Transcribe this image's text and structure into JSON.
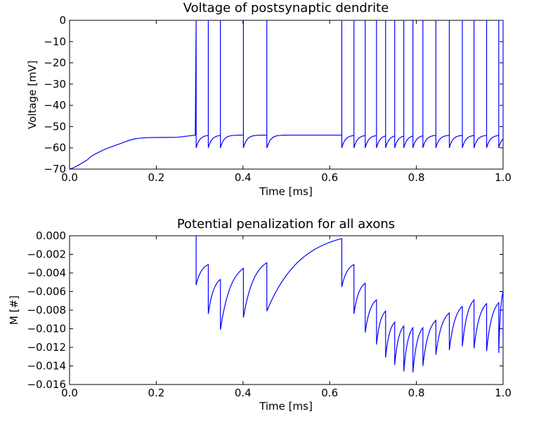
{
  "chart_data": [
    {
      "type": "line",
      "title": "Voltage of postsynaptic dendrite",
      "xlabel": "Time [ms]",
      "ylabel": "Voltage [mV]",
      "xlim": [
        0.0,
        1.0
      ],
      "ylim": [
        -70,
        0
      ],
      "xticks": [
        "0.0",
        "0.2",
        "0.4",
        "0.6",
        "0.8",
        "1.0"
      ],
      "yticks": [
        "0",
        "−10",
        "−20",
        "−30",
        "−40",
        "−50",
        "−60",
        "−70"
      ],
      "grid": false,
      "line_color": "#0000ff",
      "series": [
        {
          "x": [
            0.0,
            0.01,
            0.02,
            0.03,
            0.04,
            0.05,
            0.06,
            0.07,
            0.08,
            0.09,
            0.1,
            0.11,
            0.12,
            0.13,
            0.14,
            0.15,
            0.16,
            0.17,
            0.18,
            0.2,
            0.22,
            0.25,
            0.27,
            0.29
          ],
          "y": [
            -70.0,
            -69.3,
            -68.2,
            -67.0,
            -65.8,
            -64.0,
            -62.8,
            -61.8,
            -60.8,
            -60.0,
            -59.3,
            -58.5,
            -57.8,
            -57.0,
            -56.3,
            -55.8,
            -55.5,
            -55.3,
            -55.2,
            -55.1,
            -55.1,
            -55.0,
            -54.5,
            -54.0
          ]
        }
      ],
      "spike_times": [
        0.292,
        0.32,
        0.348,
        0.401,
        0.455,
        0.628,
        0.656,
        0.682,
        0.708,
        0.729,
        0.75,
        0.771,
        0.792,
        0.815,
        0.845,
        0.876,
        0.906,
        0.933,
        0.962,
        0.99,
        1.0
      ],
      "spike_peak": 0,
      "spike_reset": -60
    },
    {
      "type": "line",
      "title": "Potential penalization for all axons",
      "xlabel": "Time [ms]",
      "ylabel": "M [#]",
      "xlim": [
        0.0,
        1.0
      ],
      "ylim": [
        -0.016,
        0.0
      ],
      "xticks": [
        "0.0",
        "0.2",
        "0.4",
        "0.6",
        "0.8",
        "1.0"
      ],
      "yticks": [
        "0.000",
        "−0.002",
        "−0.004",
        "−0.006",
        "−0.008",
        "−0.010",
        "−0.012",
        "−0.014",
        "−0.016"
      ],
      "grid": false,
      "line_color": "#0000ff",
      "spike_times": [
        0.292,
        0.32,
        0.348,
        0.401,
        0.455,
        0.628,
        0.656,
        0.682,
        0.708,
        0.729,
        0.75,
        0.771,
        0.792,
        0.815,
        0.845,
        0.876,
        0.906,
        0.933,
        0.962,
        0.99
      ],
      "series": [
        {
          "x": [
            0.292,
            0.32,
            0.348,
            0.401,
            0.455,
            0.628,
            0.656,
            0.682,
            0.708,
            0.729,
            0.75,
            0.771,
            0.792,
            0.815,
            0.845,
            0.876,
            0.906,
            0.933,
            0.962,
            0.99,
            1.0
          ],
          "start": [
            -0.0053,
            -0.0084,
            -0.0101,
            -0.0088,
            -0.0081,
            -0.0055,
            -0.0084,
            -0.0104,
            -0.0117,
            -0.0131,
            -0.0139,
            -0.0146,
            -0.0147,
            -0.014,
            -0.0128,
            -0.0123,
            -0.0119,
            -0.0121,
            -0.0124,
            -0.0126,
            -0.0112
          ],
          "end": [
            -0.0031,
            -0.0047,
            -0.0035,
            -0.0029,
            -0.0003,
            -0.0031,
            -0.0051,
            -0.0069,
            -0.0081,
            -0.0093,
            -0.0097,
            -0.0099,
            -0.0099,
            -0.0091,
            -0.0083,
            -0.0076,
            -0.0069,
            -0.0073,
            -0.0072,
            -0.006,
            -0.0112
          ]
        }
      ]
    }
  ]
}
